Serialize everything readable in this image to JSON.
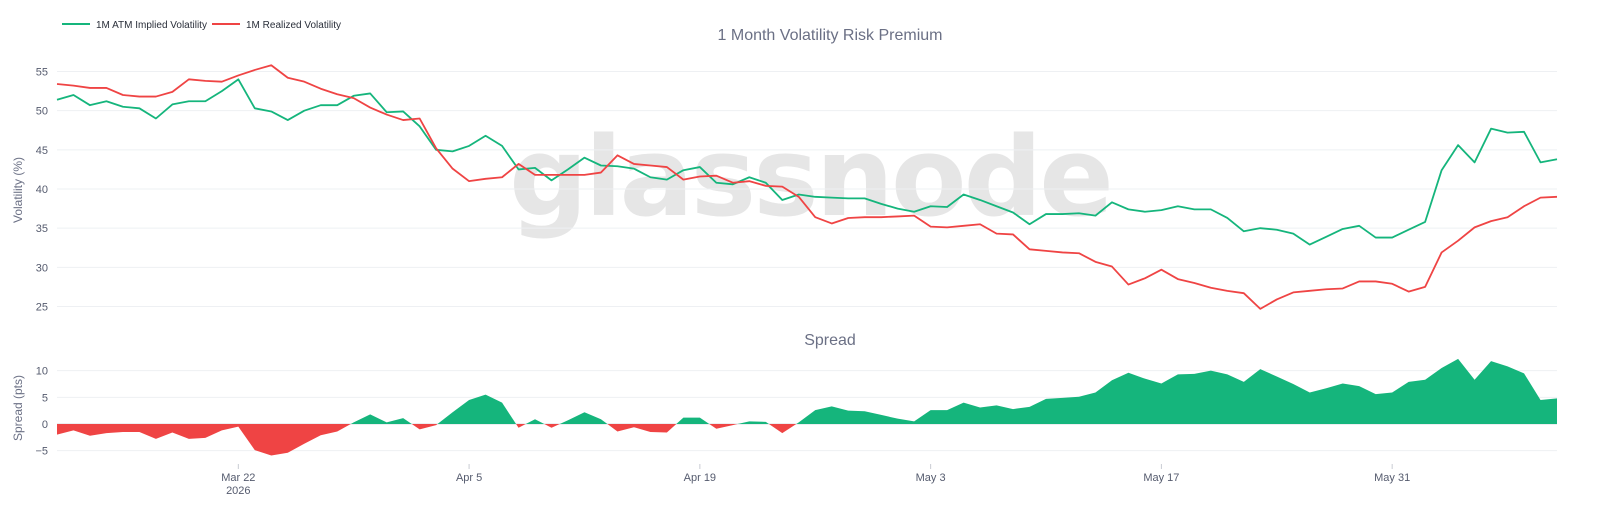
{
  "chart_data": [
    {
      "type": "line",
      "title": "1 Month Volatility Risk Premium",
      "ylabel": "Volatility (%)",
      "ylim": [
        22,
        58
      ],
      "yticks": [
        25,
        30,
        35,
        40,
        45,
        50,
        55
      ],
      "watermark": "glassnode",
      "legend": {
        "position": "top-left"
      },
      "x_start": "2026-03-11",
      "series": [
        {
          "name": "1M ATM Implied Volatility",
          "color": "#15b57c",
          "values": [
            51.4,
            52.0,
            50.7,
            51.2,
            50.5,
            50.3,
            49.0,
            50.8,
            51.2,
            51.2,
            52.5,
            54.0,
            50.3,
            49.9,
            48.8,
            50.0,
            50.7,
            50.7,
            51.9,
            52.2,
            49.8,
            49.9,
            48.0,
            45.0,
            44.8,
            45.5,
            46.8,
            45.5,
            42.5,
            42.7,
            41.1,
            42.5,
            44.0,
            43.0,
            42.9,
            42.6,
            41.5,
            41.2,
            42.4,
            42.8,
            40.8,
            40.6,
            41.5,
            40.8,
            38.6,
            39.3,
            39.0,
            38.9,
            38.8,
            38.8,
            38.1,
            37.5,
            37.1,
            37.8,
            37.7,
            39.3,
            38.6,
            37.8,
            37.0,
            35.5,
            36.8,
            36.8,
            36.9,
            36.6,
            38.3,
            37.4,
            37.1,
            37.3,
            37.8,
            37.4,
            37.4,
            36.3,
            34.6,
            35.0,
            34.8,
            34.3,
            32.9,
            33.9,
            34.9,
            35.3,
            33.8,
            33.8,
            34.8,
            35.8,
            42.4,
            45.6,
            43.4,
            47.7,
            47.2,
            47.3,
            43.4,
            43.8
          ]
        },
        {
          "name": "1M Realized Volatility",
          "color": "#ef4444",
          "values": [
            53.4,
            53.2,
            52.9,
            52.9,
            52.0,
            51.8,
            51.8,
            52.4,
            54.0,
            53.8,
            53.7,
            54.5,
            55.2,
            55.8,
            54.2,
            53.7,
            52.8,
            52.1,
            51.6,
            50.4,
            49.5,
            48.8,
            49.0,
            45.2,
            42.6,
            41.0,
            41.3,
            41.5,
            43.2,
            41.8,
            41.8,
            41.8,
            41.8,
            42.1,
            44.3,
            43.2,
            43.0,
            42.8,
            41.2,
            41.6,
            41.7,
            40.8,
            41.0,
            40.4,
            40.3,
            39.0,
            36.4,
            35.6,
            36.3,
            36.4,
            36.4,
            36.5,
            36.6,
            35.2,
            35.1,
            35.3,
            35.5,
            34.3,
            34.2,
            32.3,
            32.1,
            31.9,
            31.8,
            30.7,
            30.1,
            27.8,
            28.6,
            29.7,
            28.5,
            28.0,
            27.4,
            27.0,
            26.7,
            24.7,
            25.9,
            26.8,
            27.0,
            27.2,
            27.3,
            28.2,
            28.2,
            27.9,
            26.9,
            27.5,
            31.9,
            33.4,
            35.1,
            35.9,
            36.4,
            37.8,
            38.9,
            39.0
          ]
        }
      ]
    },
    {
      "type": "area",
      "title": "Spread",
      "ylabel": "Spread (pts)",
      "ylim": [
        -7.5,
        13.5
      ],
      "yticks": [
        -5,
        0,
        5,
        10
      ],
      "x_tick_labels": [
        {
          "date": "2026-03-22",
          "label": "Mar 22",
          "sublabel": "2026"
        },
        {
          "date": "2026-04-05",
          "label": "Apr 5",
          "sublabel": ""
        },
        {
          "date": "2026-04-19",
          "label": "Apr 19",
          "sublabel": ""
        },
        {
          "date": "2026-05-03",
          "label": "May 3",
          "sublabel": ""
        },
        {
          "date": "2026-05-17",
          "label": "May 17",
          "sublabel": ""
        },
        {
          "date": "2026-05-31",
          "label": "May 31",
          "sublabel": ""
        }
      ],
      "positive_color": "#15b57c",
      "negative_color": "#ef4444",
      "series": [
        {
          "name": "Spread",
          "values": [
            -2.0,
            -1.2,
            -2.2,
            -1.7,
            -1.5,
            -1.5,
            -2.8,
            -1.6,
            -2.8,
            -2.6,
            -1.2,
            -0.5,
            -4.9,
            -5.9,
            -5.4,
            -3.7,
            -2.1,
            -1.4,
            0.3,
            1.8,
            0.3,
            1.1,
            -1.0,
            -0.2,
            2.2,
            4.5,
            5.5,
            4.0,
            -0.7,
            0.9,
            -0.7,
            0.7,
            2.2,
            0.9,
            -1.4,
            -0.6,
            -1.5,
            -1.6,
            1.2,
            1.2,
            -0.9,
            -0.2,
            0.5,
            0.4,
            -1.7,
            0.3,
            2.6,
            3.3,
            2.5,
            2.4,
            1.7,
            1.0,
            0.5,
            2.6,
            2.6,
            4.0,
            3.1,
            3.5,
            2.8,
            3.2,
            4.7,
            4.9,
            5.1,
            5.9,
            8.2,
            9.6,
            8.5,
            7.6,
            9.3,
            9.4,
            10.0,
            9.3,
            7.9,
            10.3,
            8.9,
            7.5,
            5.9,
            6.7,
            7.6,
            7.1,
            5.6,
            5.9,
            7.9,
            8.3,
            10.5,
            12.2,
            8.3,
            11.8,
            10.8,
            9.5,
            4.5,
            4.8
          ]
        }
      ]
    }
  ]
}
